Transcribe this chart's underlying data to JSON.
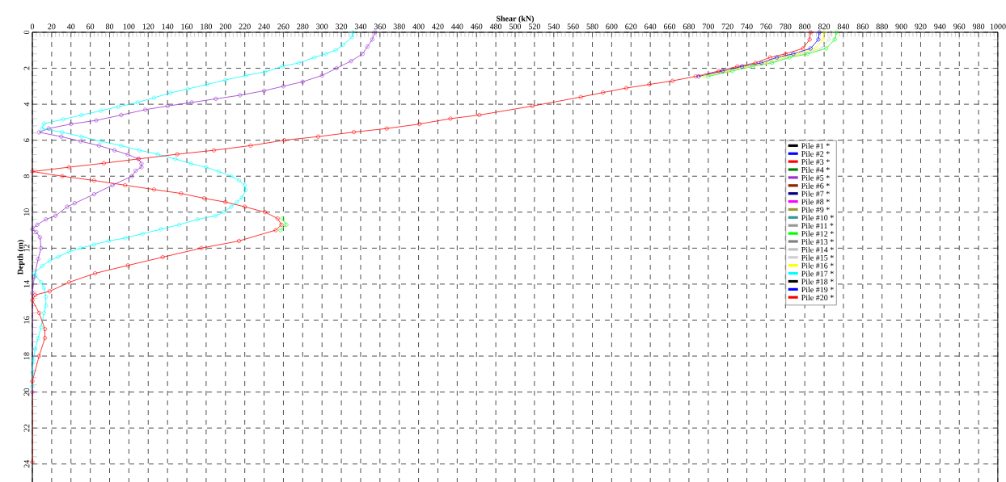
{
  "chart_data": {
    "type": "line",
    "xlabel": "Shear (kN)",
    "ylabel": "Depth (m)",
    "xlim": [
      0,
      1000
    ],
    "xticks": [
      0,
      20,
      40,
      60,
      80,
      100,
      120,
      140,
      160,
      180,
      200,
      220,
      240,
      260,
      280,
      300,
      320,
      340,
      360,
      380,
      400,
      420,
      440,
      460,
      480,
      500,
      520,
      540,
      560,
      580,
      600,
      620,
      640,
      660,
      680,
      700,
      720,
      740,
      760,
      780,
      800,
      820,
      840,
      860,
      880,
      900,
      920,
      940,
      960,
      980,
      1000
    ],
    "ylim": [
      25,
      0
    ],
    "yticks": [
      0,
      2,
      4,
      6,
      8,
      10,
      12,
      14,
      16,
      18,
      20,
      22,
      24
    ],
    "grid": true,
    "legend": "right",
    "marker": "circle",
    "series": [
      {
        "name": "Pile #1 *",
        "color": "#000000",
        "x": [
          null
        ],
        "values": [
          null
        ]
      },
      {
        "name": "Pile #2 *",
        "color": "#0000ff",
        "x": [
          null
        ],
        "values": [
          null
        ]
      },
      {
        "name": "Pile #3 *",
        "color": "#ff0000",
        "x": [
          null
        ],
        "values": [
          null
        ]
      },
      {
        "name": "Pile #4 *",
        "color": "#008000",
        "x": [
          null
        ],
        "values": [
          null
        ]
      },
      {
        "name": "Pile #5 *",
        "color": "#9933cc",
        "x": [
          355,
          352,
          347,
          342,
          330,
          315,
          300,
          280,
          260,
          240,
          215,
          190,
          165,
          140,
          117,
          92,
          66,
          40,
          17,
          7,
          30,
          50,
          69,
          85,
          99,
          110,
          113,
          113,
          107,
          103,
          83,
          64,
          44,
          36,
          24,
          14,
          5,
          0,
          4,
          8,
          9,
          6,
          2,
          0,
          0
        ],
        "values": [
          0,
          0.4,
          0.8,
          1.2,
          1.6,
          2.0,
          2.4,
          2.75,
          3.0,
          3.25,
          3.5,
          3.7,
          3.9,
          4.1,
          4.3,
          4.6,
          4.9,
          5.1,
          5.35,
          5.56,
          5.8,
          6.06,
          6.3,
          6.56,
          6.8,
          7.04,
          7.3,
          7.5,
          7.7,
          8.0,
          8.5,
          9.0,
          9.5,
          9.7,
          10.2,
          10.4,
          10.7,
          10.95,
          11.1,
          11.4,
          12.0,
          12.6,
          13.6,
          14.5,
          20.0
        ]
      },
      {
        "name": "Pile #6 *",
        "color": "#8b2500",
        "x": [
          null
        ],
        "values": [
          null
        ]
      },
      {
        "name": "Pile #7 *",
        "color": "#000080",
        "x": [
          null
        ],
        "values": [
          null
        ]
      },
      {
        "name": "Pile #8 *",
        "color": "#ff00ff",
        "x": [
          null
        ],
        "values": [
          null
        ]
      },
      {
        "name": "Pile #9 *",
        "color": "#999933",
        "x": [
          null
        ],
        "values": [
          null
        ]
      },
      {
        "name": "Pile #10 *",
        "color": "#339999",
        "x": [
          null
        ],
        "values": [
          null
        ]
      },
      {
        "name": "Pile #11 *",
        "color": "#999999",
        "x": [
          null
        ],
        "values": [
          null
        ]
      },
      {
        "name": "Pile #12 *",
        "color": "#00ff00",
        "x": [
          833,
          831,
          822,
          803,
          784,
          766,
          746,
          725,
          700,
          null,
          259,
          263,
          257
        ],
        "values": [
          0,
          0.4,
          0.9,
          1.2,
          1.4,
          1.7,
          1.9,
          2.15,
          2.45,
          null,
          10.35,
          10.7,
          11.0
        ]
      },
      {
        "name": "Pile #13 *",
        "color": "#808080",
        "x": [
          null
        ],
        "values": [
          null
        ]
      },
      {
        "name": "Pile #14 *",
        "color": "#c0c0c0",
        "x": [
          null
        ],
        "values": [
          null
        ]
      },
      {
        "name": "Pile #15 *",
        "color": "#d0d0d0",
        "x": [
          827,
          825,
          817,
          798,
          780,
          763,
          743,
          722,
          697
        ],
        "values": [
          0,
          0.4,
          0.9,
          1.2,
          1.4,
          1.7,
          1.9,
          2.15,
          2.45
        ]
      },
      {
        "name": "Pile #16 *",
        "color": "#ffff00",
        "x": [
          820,
          819,
          811,
          793,
          775,
          759,
          739,
          719,
          694
        ],
        "values": [
          0,
          0.4,
          0.9,
          1.2,
          1.4,
          1.7,
          1.9,
          2.15,
          2.45
        ]
      },
      {
        "name": "Pile #17 *",
        "color": "#00ffff",
        "x": [
          332,
          331,
          322,
          314,
          304,
          292,
          276,
          259,
          241,
          221,
          200,
          181,
          161,
          143,
          126,
          109,
          89,
          71,
          51,
          32,
          12,
          10,
          31,
          51,
          71,
          92,
          111,
          130,
          148,
          164,
          180,
          193,
          206,
          214,
          220,
          221,
          217,
          212,
          206,
          198,
          190,
          171,
          152,
          133,
          114,
          96,
          79,
          64,
          50,
          38,
          27,
          18,
          10,
          2,
          3,
          9,
          12,
          14,
          14,
          12,
          9,
          6,
          3,
          1,
          0,
          0
        ],
        "values": [
          0,
          0.27,
          0.7,
          1.0,
          1.2,
          1.4,
          1.7,
          1.9,
          2.2,
          2.4,
          2.65,
          2.9,
          3.15,
          3.37,
          3.64,
          3.9,
          4.14,
          4.36,
          4.6,
          4.84,
          5.08,
          5.35,
          5.56,
          5.8,
          6.06,
          6.3,
          6.56,
          6.78,
          7.04,
          7.3,
          7.5,
          7.74,
          8.0,
          8.24,
          8.5,
          8.77,
          9.2,
          9.44,
          9.7,
          10.0,
          10.2,
          10.4,
          10.7,
          10.95,
          11.2,
          11.44,
          11.6,
          11.8,
          12.0,
          12.2,
          12.48,
          12.7,
          13.0,
          13.4,
          13.5,
          13.9,
          14.2,
          14.7,
          15.2,
          15.6,
          16.4,
          17.0,
          17.6,
          18.2,
          18.9,
          19.7
        ]
      },
      {
        "name": "Pile #18 *",
        "color": "#000000",
        "x": [
          null
        ],
        "values": [
          null
        ]
      },
      {
        "name": "Pile #19 *",
        "color": "#0000ff",
        "x": [
          815,
          814,
          806,
          788,
          771,
          755,
          735,
          715,
          690
        ],
        "values": [
          0,
          0.4,
          0.9,
          1.2,
          1.4,
          1.7,
          1.9,
          2.15,
          2.45
        ]
      },
      {
        "name": "Pile #20 *",
        "color": "#ff0000",
        "x": [
          806,
          805,
          798,
          780,
          764,
          749,
          730,
          711,
          687,
          663,
          639,
          615,
          591,
          568,
          518,
          463,
          433,
          401,
          367,
          333,
          296,
          261,
          226,
          188,
          150,
          110,
          74,
          38,
          0,
          31,
          64,
          96,
          126,
          154,
          178,
          200,
          220,
          241,
          254,
          258,
          252,
          214,
          175,
          135,
          99,
          65,
          38,
          18,
          3,
          0,
          7,
          13,
          13,
          7,
          0,
          0
        ],
        "values": [
          0,
          0.4,
          0.9,
          1.2,
          1.4,
          1.7,
          1.9,
          2.15,
          2.45,
          2.7,
          2.9,
          3.1,
          3.35,
          3.6,
          4.1,
          4.6,
          4.8,
          5.1,
          5.35,
          5.55,
          5.8,
          6.0,
          6.3,
          6.56,
          6.78,
          7.04,
          7.28,
          7.5,
          7.74,
          8.0,
          8.24,
          8.5,
          8.74,
          8.96,
          9.23,
          9.44,
          9.7,
          10.0,
          10.35,
          10.7,
          11.0,
          11.6,
          12.0,
          12.5,
          12.96,
          13.4,
          13.9,
          14.4,
          14.6,
          14.9,
          15.6,
          16.5,
          17.0,
          18.0,
          19.4,
          23.9
        ]
      }
    ]
  }
}
